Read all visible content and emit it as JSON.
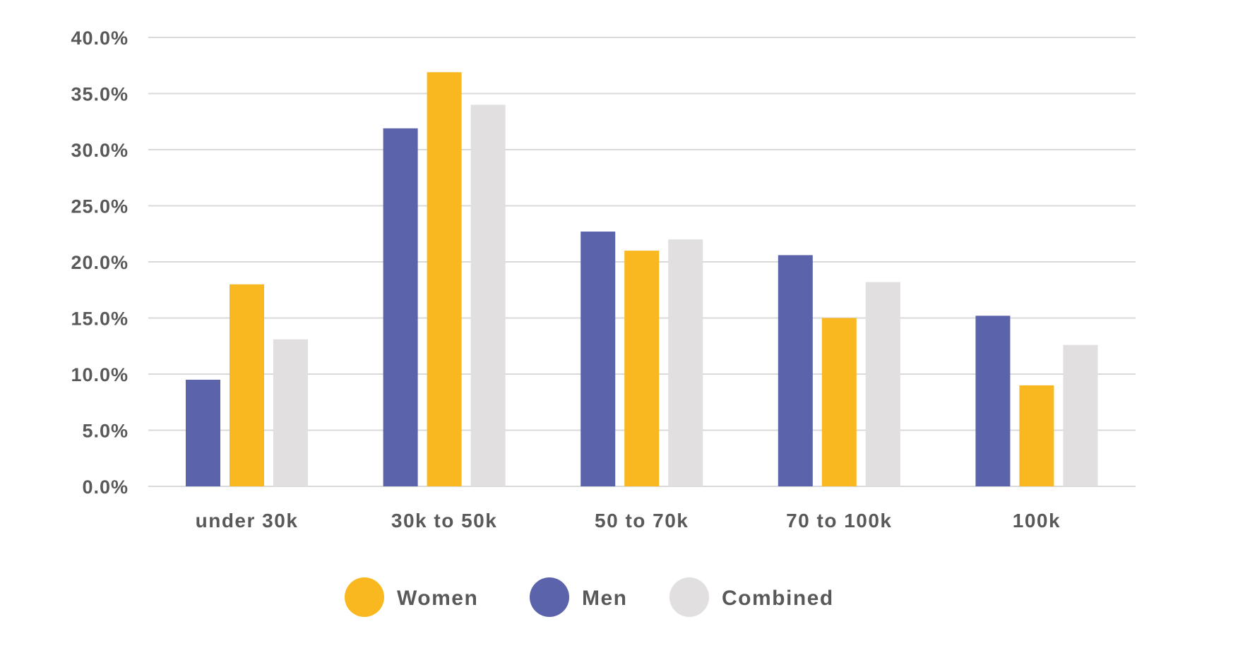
{
  "chart_data": {
    "type": "bar",
    "categories": [
      "under 30k",
      "30k to 50k",
      "50 to 70k",
      "70 to 100k",
      "100k"
    ],
    "series": [
      {
        "name": "Men",
        "color": "#5B63AB",
        "values": [
          9.5,
          31.9,
          22.7,
          20.6,
          15.2
        ]
      },
      {
        "name": "Women",
        "color": "#F9B820",
        "values": [
          18.0,
          36.9,
          21.0,
          15.0,
          9.0
        ]
      },
      {
        "name": "Combined",
        "color": "#E1DFE0",
        "values": [
          13.1,
          34.0,
          22.0,
          18.2,
          12.6
        ]
      }
    ],
    "ylim": [
      0,
      40
    ],
    "yticks": [
      0,
      5,
      10,
      15,
      20,
      25,
      30,
      35,
      40
    ],
    "ytick_labels": [
      "0.0%",
      "5.0%",
      "10.0%",
      "15.0%",
      "20.0%",
      "25.0%",
      "30.0%",
      "35.0%",
      "40.0%"
    ],
    "grid": true,
    "legend": {
      "placement": "bottom",
      "order": [
        "Women",
        "Men",
        "Combined"
      ]
    }
  }
}
